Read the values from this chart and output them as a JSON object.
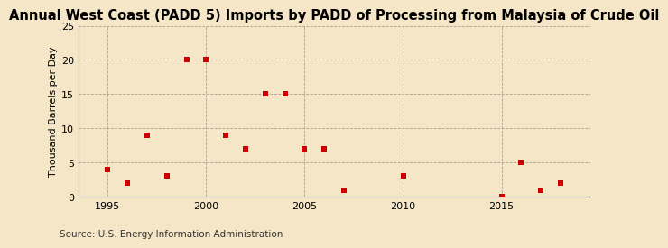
{
  "title": "Annual West Coast (PADD 5) Imports by PADD of Processing from Malaysia of Crude Oil",
  "ylabel": "Thousand Barrels per Day",
  "source": "Source: U.S. Energy Information Administration",
  "background_color": "#f5e6c8",
  "marker_color": "#cc0000",
  "years": [
    1995,
    1996,
    1997,
    1998,
    1999,
    2000,
    2001,
    2002,
    2003,
    2004,
    2005,
    2006,
    2007,
    2010,
    2015,
    2016,
    2017,
    2018
  ],
  "values": [
    4,
    2,
    9,
    3,
    20,
    20,
    9,
    7,
    15,
    15,
    7,
    7,
    1,
    3,
    0,
    5,
    1,
    2
  ],
  "xlim": [
    1993.5,
    2019.5
  ],
  "ylim": [
    0,
    25
  ],
  "yticks": [
    0,
    5,
    10,
    15,
    20,
    25
  ],
  "xticks": [
    1995,
    2000,
    2005,
    2010,
    2015
  ],
  "vgrid_years": [
    1995,
    2000,
    2005,
    2010,
    2015
  ],
  "title_fontsize": 10.5,
  "label_fontsize": 8,
  "tick_fontsize": 8,
  "source_fontsize": 7.5,
  "marker_size": 14
}
